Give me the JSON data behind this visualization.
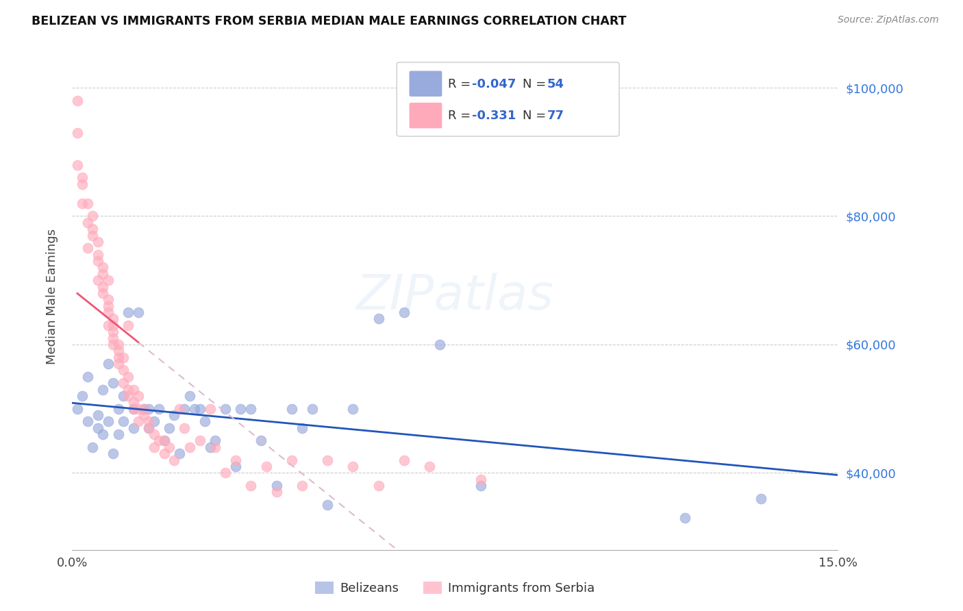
{
  "title": "BELIZEAN VS IMMIGRANTS FROM SERBIA MEDIAN MALE EARNINGS CORRELATION CHART",
  "source": "Source: ZipAtlas.com",
  "ylabel": "Median Male Earnings",
  "yticks": [
    40000,
    60000,
    80000,
    100000
  ],
  "ytick_labels": [
    "$40,000",
    "$60,000",
    "$80,000",
    "$100,000"
  ],
  "xlim": [
    0.0,
    0.15
  ],
  "ylim": [
    28000,
    107000
  ],
  "belizean_color": "#99AADD",
  "serbia_color": "#FFAABB",
  "belizean_R": -0.047,
  "belizean_N": 54,
  "serbia_R": -0.331,
  "serbia_N": 77,
  "trend_belizean_color": "#2255BB",
  "trend_serbia_color": "#EE5577",
  "trend_serbia_dashed_color": "#DDBBCC",
  "legend_text_color": "#3366CC",
  "legend_R_color": "#3366CC",
  "legend_N_color": "#3366CC",
  "watermark": "ZIPatlas",
  "legend_belizeans": "Belizeans",
  "legend_serbia": "Immigrants from Serbia",
  "belizean_x": [
    0.001,
    0.002,
    0.003,
    0.003,
    0.004,
    0.005,
    0.005,
    0.006,
    0.006,
    0.007,
    0.007,
    0.008,
    0.008,
    0.009,
    0.009,
    0.01,
    0.01,
    0.011,
    0.012,
    0.012,
    0.013,
    0.014,
    0.015,
    0.015,
    0.016,
    0.017,
    0.018,
    0.019,
    0.02,
    0.021,
    0.022,
    0.023,
    0.024,
    0.025,
    0.026,
    0.027,
    0.028,
    0.03,
    0.032,
    0.033,
    0.035,
    0.037,
    0.04,
    0.043,
    0.045,
    0.047,
    0.05,
    0.055,
    0.06,
    0.065,
    0.072,
    0.08,
    0.12,
    0.135
  ],
  "belizean_y": [
    50000,
    52000,
    48000,
    55000,
    44000,
    49000,
    47000,
    53000,
    46000,
    57000,
    48000,
    54000,
    43000,
    50000,
    46000,
    52000,
    48000,
    65000,
    47000,
    50000,
    65000,
    50000,
    50000,
    47000,
    48000,
    50000,
    45000,
    47000,
    49000,
    43000,
    50000,
    52000,
    50000,
    50000,
    48000,
    44000,
    45000,
    50000,
    41000,
    50000,
    50000,
    45000,
    38000,
    50000,
    47000,
    50000,
    35000,
    50000,
    64000,
    65000,
    60000,
    38000,
    33000,
    36000
  ],
  "serbia_x": [
    0.001,
    0.001,
    0.001,
    0.002,
    0.002,
    0.002,
    0.003,
    0.003,
    0.003,
    0.004,
    0.004,
    0.004,
    0.005,
    0.005,
    0.005,
    0.005,
    0.006,
    0.006,
    0.006,
    0.006,
    0.007,
    0.007,
    0.007,
    0.007,
    0.007,
    0.008,
    0.008,
    0.008,
    0.008,
    0.008,
    0.009,
    0.009,
    0.009,
    0.009,
    0.01,
    0.01,
    0.01,
    0.011,
    0.011,
    0.011,
    0.011,
    0.012,
    0.012,
    0.012,
    0.013,
    0.013,
    0.013,
    0.014,
    0.014,
    0.015,
    0.015,
    0.016,
    0.016,
    0.017,
    0.018,
    0.018,
    0.019,
    0.02,
    0.021,
    0.022,
    0.023,
    0.025,
    0.027,
    0.028,
    0.03,
    0.032,
    0.035,
    0.038,
    0.04,
    0.043,
    0.045,
    0.05,
    0.055,
    0.06,
    0.065,
    0.07,
    0.08
  ],
  "serbia_y": [
    98000,
    93000,
    88000,
    85000,
    82000,
    86000,
    79000,
    82000,
    75000,
    78000,
    80000,
    77000,
    73000,
    76000,
    70000,
    74000,
    72000,
    68000,
    69000,
    71000,
    66000,
    63000,
    65000,
    67000,
    70000,
    62000,
    64000,
    60000,
    61000,
    63000,
    58000,
    59000,
    60000,
    57000,
    56000,
    54000,
    58000,
    55000,
    52000,
    53000,
    63000,
    50000,
    51000,
    53000,
    50000,
    48000,
    52000,
    49000,
    50000,
    48000,
    47000,
    46000,
    44000,
    45000,
    43000,
    45000,
    44000,
    42000,
    50000,
    47000,
    44000,
    45000,
    50000,
    44000,
    40000,
    42000,
    38000,
    41000,
    37000,
    42000,
    38000,
    42000,
    41000,
    38000,
    42000,
    41000,
    39000
  ]
}
